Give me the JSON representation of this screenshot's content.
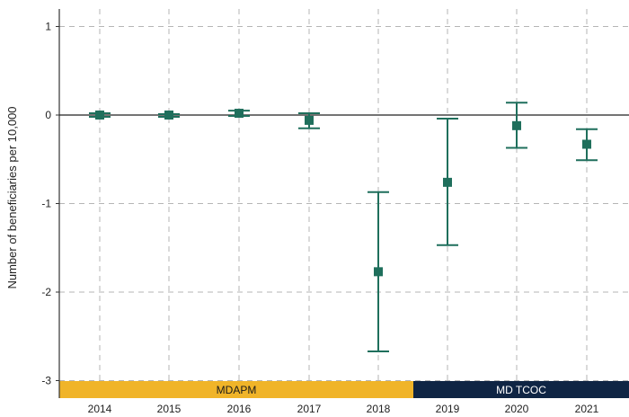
{
  "chart_data": {
    "type": "scatter",
    "subtype": "point-estimate-with-error-bars",
    "title": "",
    "xlabel": "",
    "ylabel": "Number of beneficiaries per 10,000",
    "ylim": [
      -3,
      1.2
    ],
    "yticks": [
      -3,
      -2,
      -1,
      0,
      1
    ],
    "ytick_labels": [
      "-3",
      "-2",
      "-1",
      "0",
      "1"
    ],
    "grid": true,
    "reference_line_y": 0,
    "categories": [
      "2014",
      "2015",
      "2016",
      "2017",
      "2018",
      "2019",
      "2020",
      "2021"
    ],
    "series": [
      {
        "color": "#1f6f5c",
        "points": [
          {
            "x": "2014",
            "y": 0.0,
            "lower": -0.02,
            "upper": 0.02
          },
          {
            "x": "2015",
            "y": 0.0,
            "lower": -0.02,
            "upper": 0.01
          },
          {
            "x": "2016",
            "y": 0.02,
            "lower": -0.01,
            "upper": 0.05
          },
          {
            "x": "2017",
            "y": -0.06,
            "lower": -0.15,
            "upper": 0.02
          },
          {
            "x": "2018",
            "y": -1.77,
            "lower": -2.67,
            "upper": -0.87
          },
          {
            "x": "2019",
            "y": -0.76,
            "lower": -1.47,
            "upper": -0.04
          },
          {
            "x": "2020",
            "y": -0.12,
            "lower": -0.37,
            "upper": 0.14
          },
          {
            "x": "2021",
            "y": -0.33,
            "lower": -0.51,
            "upper": -0.16
          }
        ]
      }
    ],
    "period_bands": [
      {
        "label": "MDAPM",
        "from": "2014",
        "to": "2018",
        "color": "#f0b429",
        "text_color": "#1a1a1a"
      },
      {
        "label": "MD TCOC",
        "from": "2019",
        "to": "2021",
        "color": "#0f2544",
        "text_color": "#ffffff"
      }
    ]
  }
}
